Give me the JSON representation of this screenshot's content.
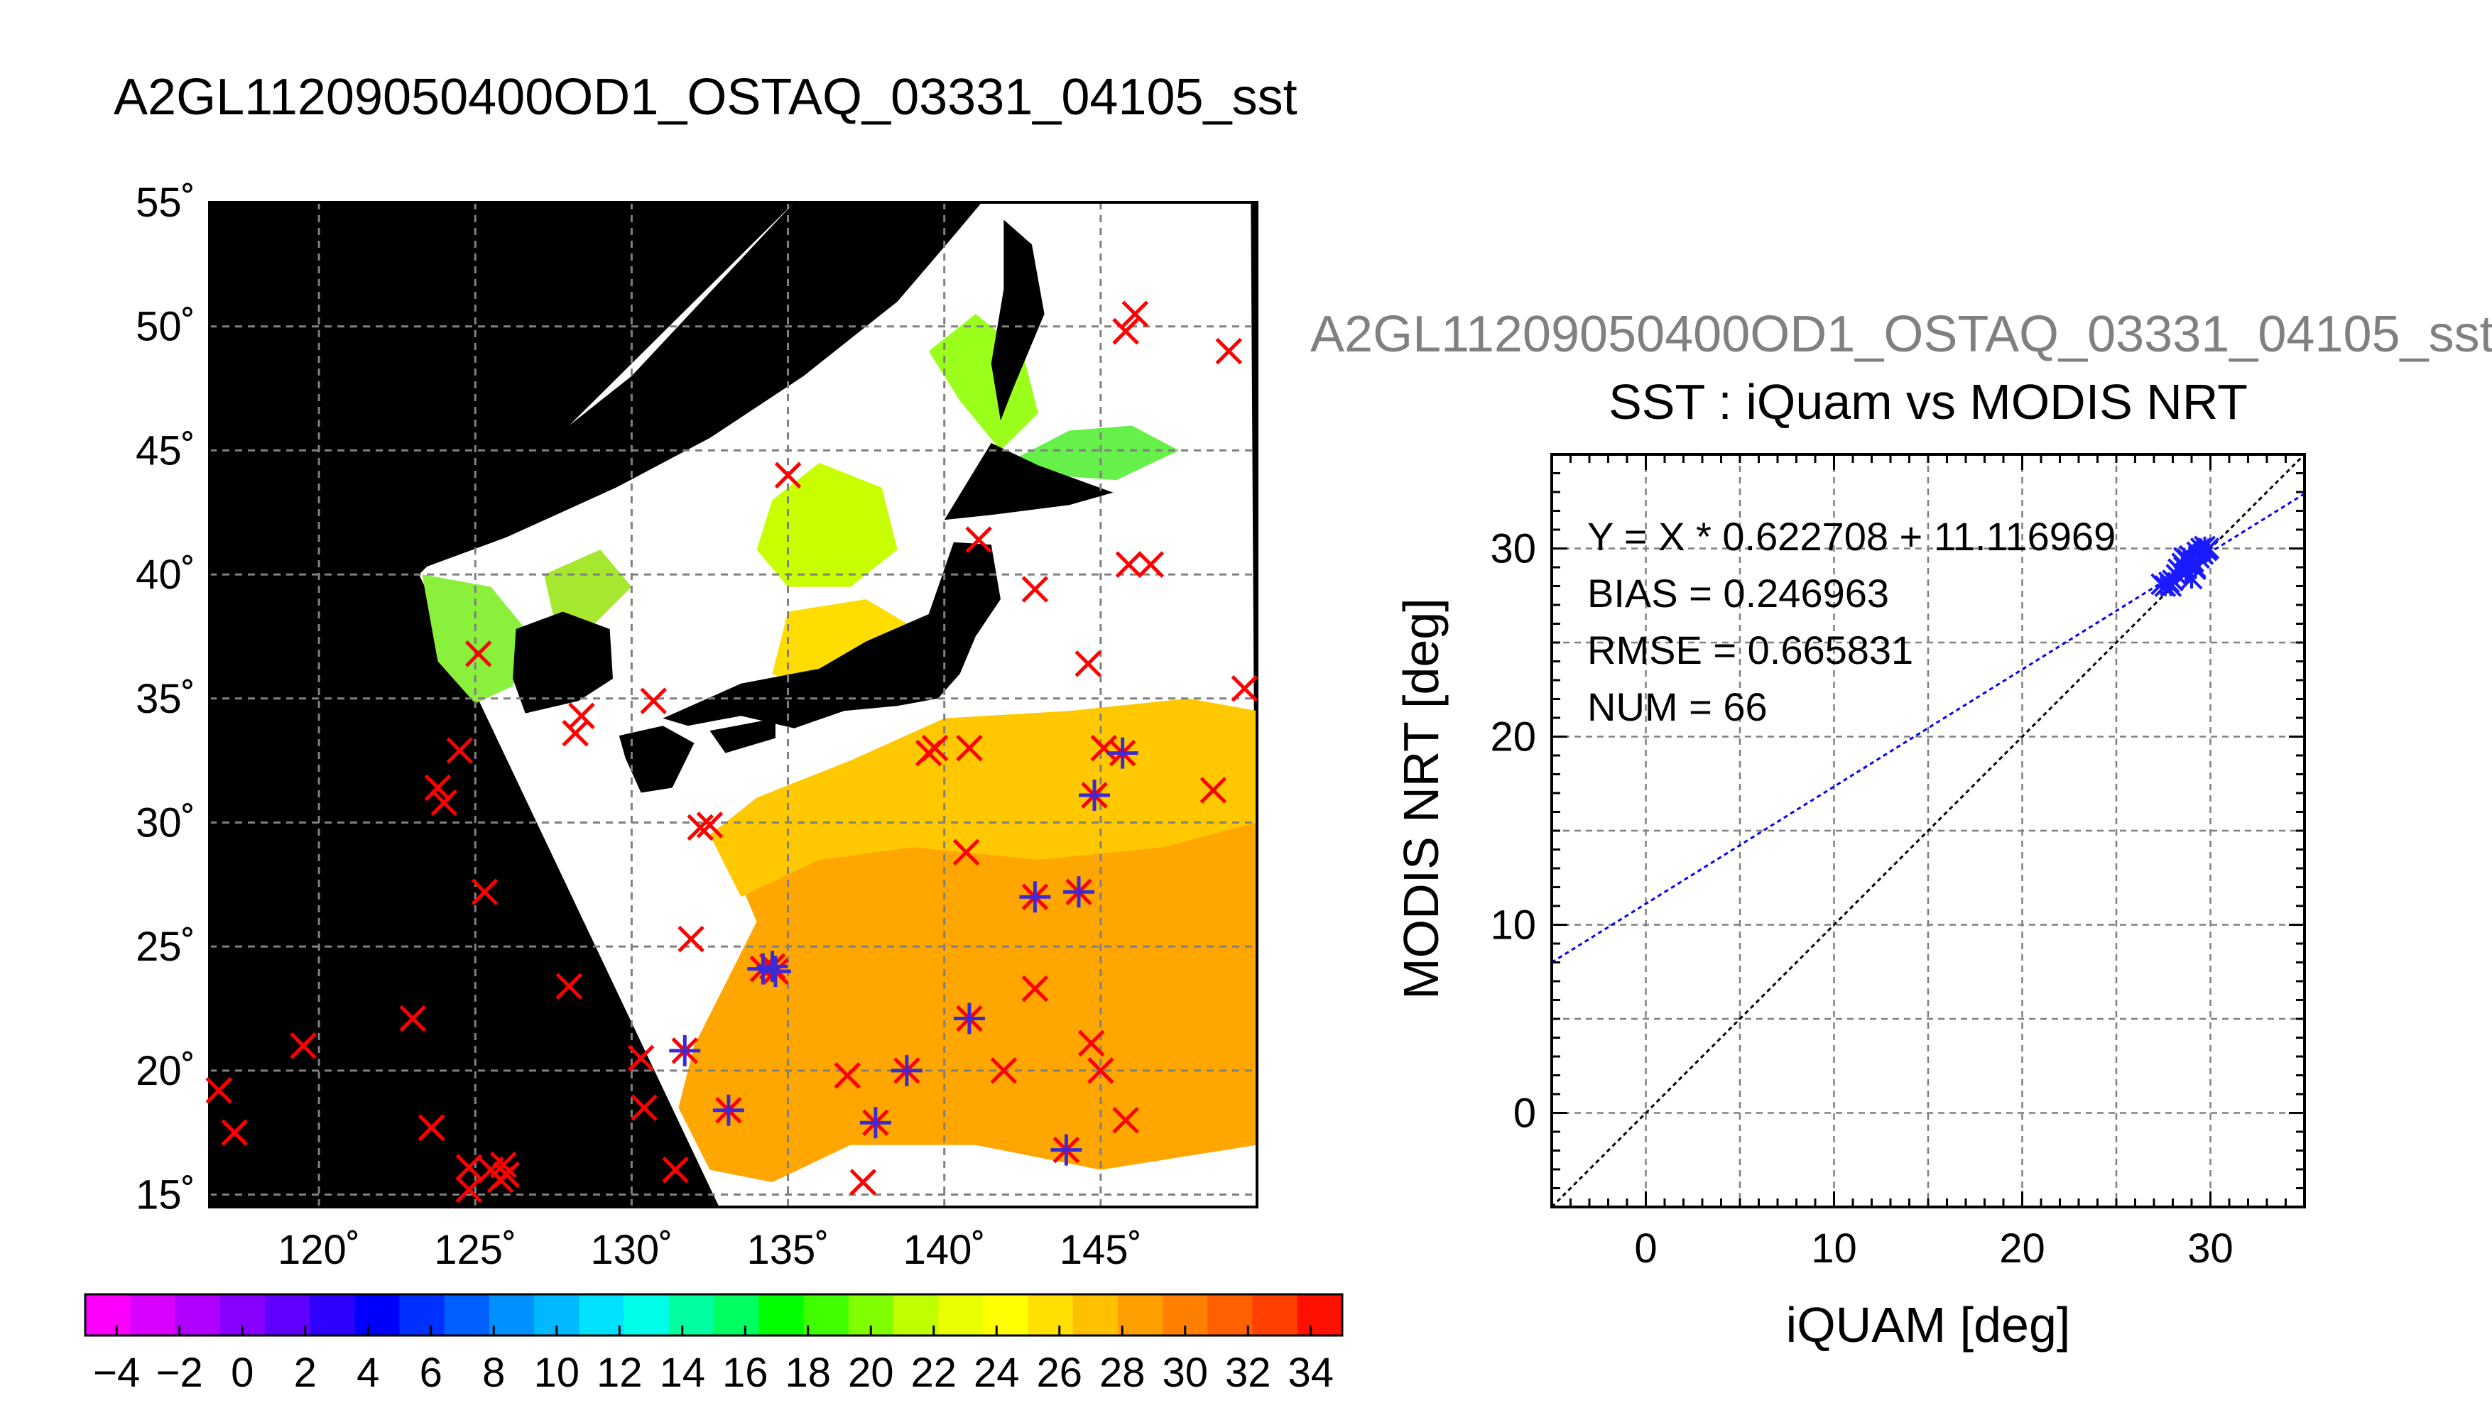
{
  "page": {
    "title": "A2GL11209050400OD1_OSTAQ_03331_04105_sst",
    "subtitle": "A2GL11209050400OD1_OSTAQ_03331_04105_sst"
  },
  "colors": {
    "land": "#000000",
    "cloud": "#ffffff",
    "cross": "#ff0000",
    "star": "#3a2ad8",
    "fit_line": "#0000ff",
    "identity_line": "#000000",
    "grid": "#808080"
  },
  "chart_data": [
    {
      "type": "heatmap",
      "title": "A2GL11209050400OD1_OSTAQ_03331_04105_sst",
      "xlim": [
        116.5,
        150
      ],
      "ylim": [
        14.5,
        55
      ],
      "x_ticks": [
        {
          "value": 120,
          "label": "120˚"
        },
        {
          "value": 125,
          "label": "125˚"
        },
        {
          "value": 130,
          "label": "130˚"
        },
        {
          "value": 135,
          "label": "135˚"
        },
        {
          "value": 140,
          "label": "140˚"
        },
        {
          "value": 145,
          "label": "145˚"
        }
      ],
      "y_ticks": [
        {
          "value": 15,
          "label": "15˚"
        },
        {
          "value": 20,
          "label": "20˚"
        },
        {
          "value": 25,
          "label": "25˚"
        },
        {
          "value": 30,
          "label": "30˚"
        },
        {
          "value": 35,
          "label": "35˚"
        },
        {
          "value": 40,
          "label": "40˚"
        },
        {
          "value": 45,
          "label": "45˚"
        },
        {
          "value": 50,
          "label": "50˚"
        },
        {
          "value": 55,
          "label": "55˚"
        }
      ],
      "grid": true,
      "colorbar": {
        "min": -5,
        "max": 35,
        "labels": [
          "−4",
          "−2",
          "0",
          "2",
          "4",
          "6",
          "8",
          "10",
          "12",
          "14",
          "16",
          "18",
          "20",
          "22",
          "24",
          "26",
          "28",
          "30",
          "32",
          "34"
        ],
        "colors": [
          "#ff00ff",
          "#d800ff",
          "#b000ff",
          "#8800ff",
          "#6000ff",
          "#3000ff",
          "#0000ff",
          "#0030ff",
          "#0060ff",
          "#0090ff",
          "#00b8ff",
          "#00e0ff",
          "#00ffe8",
          "#00ffa0",
          "#00ff60",
          "#00ff00",
          "#40ff00",
          "#80ff00",
          "#c0ff00",
          "#e8ff00",
          "#ffff00",
          "#ffe000",
          "#ffc000",
          "#ffa000",
          "#ff8000",
          "#ff6000",
          "#ff4000",
          "#ff1000"
        ]
      },
      "buoy_crosses": [
        [
          116.8,
          19.2
        ],
        [
          117.3,
          17.5
        ],
        [
          119.5,
          21.0
        ],
        [
          123.0,
          22.1
        ],
        [
          123.6,
          17.7
        ],
        [
          123.8,
          31.4
        ],
        [
          124.0,
          30.8
        ],
        [
          124.5,
          32.9
        ],
        [
          124.8,
          16.1
        ],
        [
          124.8,
          15.2
        ],
        [
          125.1,
          36.8
        ],
        [
          125.3,
          27.2
        ],
        [
          125.5,
          16.0
        ],
        [
          125.8,
          15.6
        ],
        [
          125.9,
          16.2
        ],
        [
          126.0,
          15.8
        ],
        [
          128.0,
          23.4
        ],
        [
          128.2,
          33.6
        ],
        [
          128.4,
          34.3
        ],
        [
          130.3,
          20.5
        ],
        [
          130.4,
          18.5
        ],
        [
          130.7,
          34.9
        ],
        [
          131.4,
          16.0
        ],
        [
          131.7,
          20.8
        ],
        [
          131.9,
          25.3
        ],
        [
          132.2,
          29.8
        ],
        [
          132.5,
          29.9
        ],
        [
          133.1,
          18.4
        ],
        [
          134.2,
          24.1
        ],
        [
          134.5,
          24.2
        ],
        [
          134.6,
          24.0
        ],
        [
          135.0,
          44.0
        ],
        [
          136.9,
          19.8
        ],
        [
          137.4,
          15.5
        ],
        [
          137.8,
          17.9
        ],
        [
          138.8,
          20.0
        ],
        [
          140.7,
          28.8
        ],
        [
          140.8,
          22.1
        ],
        [
          140.8,
          33.0
        ],
        [
          141.1,
          41.4
        ],
        [
          141.9,
          20.0
        ],
        [
          142.9,
          39.4
        ],
        [
          142.9,
          27.0
        ],
        [
          142.9,
          23.3
        ],
        [
          143.9,
          16.8
        ],
        [
          144.3,
          27.2
        ],
        [
          144.6,
          36.4
        ],
        [
          144.7,
          21.1
        ],
        [
          144.8,
          31.1
        ],
        [
          145.0,
          20.0
        ],
        [
          145.1,
          33.0
        ],
        [
          145.7,
          32.8
        ],
        [
          145.8,
          18.0
        ],
        [
          145.8,
          49.8
        ],
        [
          145.9,
          40.4
        ],
        [
          146.1,
          50.5
        ],
        [
          146.6,
          40.4
        ],
        [
          148.6,
          31.3
        ],
        [
          149.1,
          49.0
        ],
        [
          149.6,
          35.4
        ],
        [
          139.7,
          33.0
        ],
        [
          139.5,
          32.8
        ]
      ],
      "matchup_stars": [
        [
          131.7,
          20.8
        ],
        [
          133.1,
          18.4
        ],
        [
          134.2,
          24.1
        ],
        [
          134.5,
          24.2
        ],
        [
          134.6,
          24.0
        ],
        [
          137.8,
          17.9
        ],
        [
          138.8,
          20.0
        ],
        [
          140.8,
          22.1
        ],
        [
          142.9,
          27.0
        ],
        [
          143.9,
          16.8
        ],
        [
          144.3,
          27.2
        ],
        [
          144.8,
          31.1
        ],
        [
          145.7,
          32.8
        ]
      ]
    },
    {
      "type": "scatter",
      "title": "SST : iQuam vs MODIS NRT",
      "xlabel": "iQUAM [deg]",
      "ylabel": "MODIS NRT [deg]",
      "xlim": [
        -5,
        35
      ],
      "ylim": [
        -5,
        35
      ],
      "x_ticks": [
        0,
        10,
        20,
        30
      ],
      "y_ticks": [
        0,
        10,
        20,
        30
      ],
      "grid": true,
      "annotations": [
        "Y = X * 0.622708 + 11.116969",
        "BIAS = 0.246963",
        "RMSE = 0.665831",
        "NUM = 66"
      ],
      "fit": {
        "slope": 0.622708,
        "intercept": 11.116969
      },
      "identity_line": true,
      "points": [
        [
          27.4,
          28.1
        ],
        [
          27.6,
          28.0
        ],
        [
          27.8,
          28.2
        ],
        [
          28.0,
          28.3
        ],
        [
          28.2,
          28.6
        ],
        [
          28.3,
          28.9
        ],
        [
          28.5,
          29.2
        ],
        [
          28.6,
          29.0
        ],
        [
          28.7,
          28.7
        ],
        [
          28.8,
          29.4
        ],
        [
          28.9,
          29.6
        ],
        [
          29.0,
          28.4
        ],
        [
          29.0,
          29.1
        ],
        [
          29.1,
          29.3
        ],
        [
          29.2,
          29.0
        ],
        [
          29.3,
          29.8
        ],
        [
          29.4,
          29.5
        ],
        [
          29.5,
          30.0
        ],
        [
          29.6,
          29.7
        ],
        [
          29.8,
          29.9
        ],
        [
          29.9,
          30.0
        ],
        [
          28.4,
          28.8
        ],
        [
          28.6,
          29.5
        ],
        [
          29.2,
          28.9
        ],
        [
          27.9,
          28.0
        ],
        [
          29.7,
          30.1
        ]
      ],
      "point_markers": "x-and-star"
    }
  ]
}
